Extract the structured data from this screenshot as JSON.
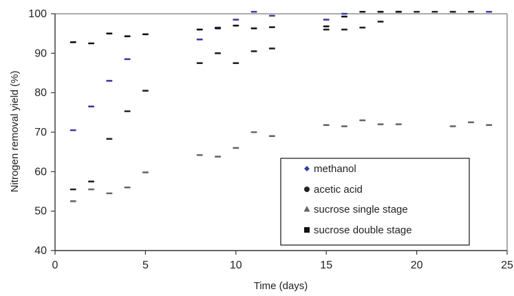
{
  "chart_data": {
    "type": "scatter",
    "title": "",
    "xlabel": "Time (days)",
    "ylabel": "Nitrogen removal yield (%)",
    "xlim": [
      0,
      25
    ],
    "ylim": [
      40,
      100
    ],
    "x_ticks": [
      "0",
      "5",
      "10",
      "15",
      "20",
      "25"
    ],
    "y_ticks": [
      "40",
      "50",
      "60",
      "70",
      "80",
      "90",
      "100"
    ],
    "grid": false,
    "legend_position": "bottom-right",
    "colors": {
      "methanol": "#3a3aa0",
      "acetic_acid": "#222222",
      "sucrose_single_stage": "#666666",
      "sucrose_double_stage": "#111111",
      "axis": "#555555"
    },
    "series": [
      {
        "name": "methanol",
        "marker": "diamond",
        "points": [
          [
            1,
            70.5
          ],
          [
            2,
            76.5
          ],
          [
            3,
            83
          ],
          [
            4,
            88.5
          ],
          [
            8,
            93.5
          ],
          [
            9,
            96.5
          ],
          [
            10,
            98.5
          ],
          [
            11,
            100.5
          ],
          [
            12,
            99.5
          ],
          [
            15,
            98.5
          ],
          [
            16,
            100
          ],
          [
            18,
            100.5
          ],
          [
            19,
            100.5
          ],
          [
            22,
            100.5
          ],
          [
            24,
            100.5
          ]
        ]
      },
      {
        "name": "acetic acid",
        "marker": "circle",
        "points": [
          [
            1,
            55.5
          ],
          [
            2,
            57.5
          ],
          [
            3,
            68.3
          ],
          [
            4,
            75.3
          ],
          [
            5,
            80.5
          ],
          [
            8,
            87.5
          ],
          [
            9,
            90
          ],
          [
            10,
            87.5
          ],
          [
            11,
            90.5
          ],
          [
            12,
            91.2
          ],
          [
            15,
            96
          ],
          [
            16,
            96
          ],
          [
            17,
            96.5
          ],
          [
            18,
            98
          ],
          [
            19,
            100.5
          ],
          [
            20,
            100.5
          ],
          [
            21,
            100.5
          ],
          [
            22,
            100.5
          ],
          [
            23,
            100.5
          ]
        ]
      },
      {
        "name": "sucrose single stage",
        "marker": "triangle",
        "points": [
          [
            1,
            52.5
          ],
          [
            2,
            55.5
          ],
          [
            3,
            54.5
          ],
          [
            4,
            56
          ],
          [
            5,
            59.8
          ],
          [
            8,
            64.2
          ],
          [
            9,
            63.8
          ],
          [
            10,
            66
          ],
          [
            11,
            70
          ],
          [
            12,
            69
          ],
          [
            15,
            71.8
          ],
          [
            16,
            71.5
          ],
          [
            17,
            73
          ],
          [
            18,
            72
          ],
          [
            19,
            72
          ],
          [
            22,
            71.5
          ],
          [
            23,
            72.5
          ],
          [
            24,
            71.8
          ]
        ]
      },
      {
        "name": "sucrose double stage",
        "marker": "square",
        "points": [
          [
            1,
            92.8
          ],
          [
            2,
            92.5
          ],
          [
            3,
            95
          ],
          [
            4,
            94.3
          ],
          [
            5,
            94.8
          ],
          [
            8,
            96
          ],
          [
            9,
            96.3
          ],
          [
            10,
            97
          ],
          [
            11,
            96.3
          ],
          [
            12,
            96.6
          ],
          [
            15,
            96.8
          ],
          [
            16,
            99.3
          ],
          [
            17,
            100.5
          ],
          [
            18,
            100.5
          ],
          [
            19,
            100.5
          ]
        ]
      }
    ]
  }
}
